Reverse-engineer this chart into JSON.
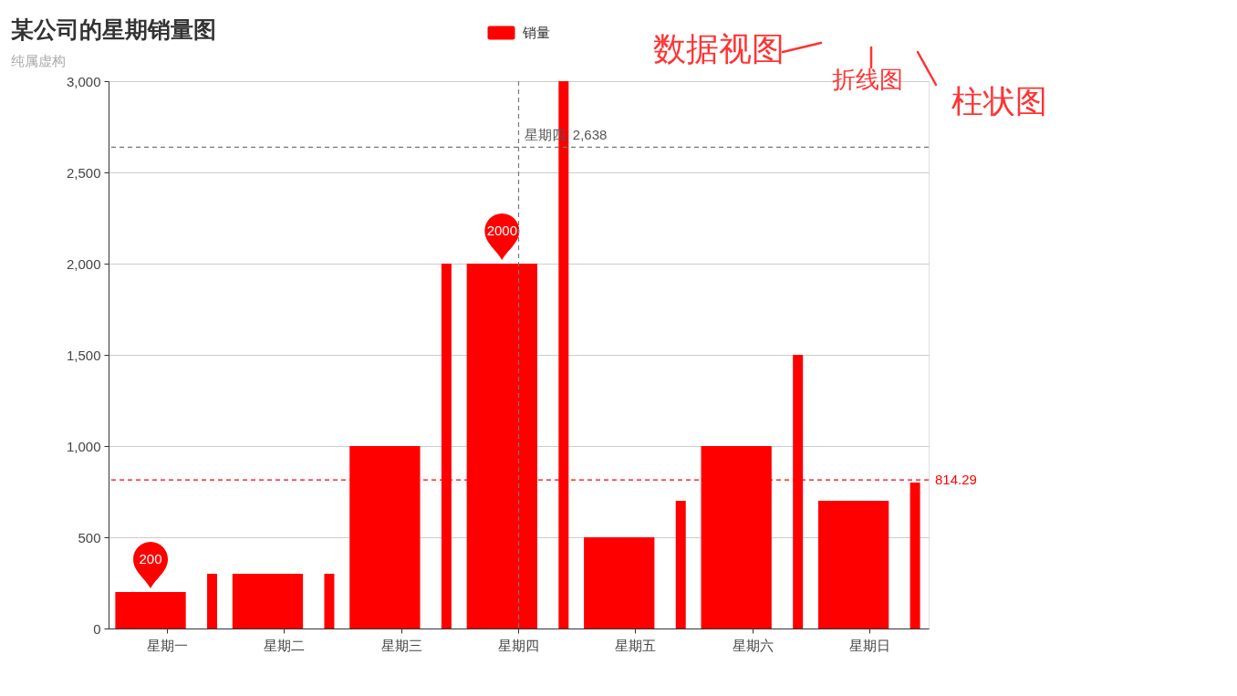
{
  "chart_data": {
    "type": "bar",
    "title": "某公司的星期销量图",
    "subtitle": "纯属虚构",
    "categories": [
      "星期一",
      "星期二",
      "星期三",
      "星期四",
      "星期五",
      "星期六",
      "星期日"
    ],
    "series": [
      {
        "name": "销量",
        "color": "#ff0000",
        "values": [
          200,
          300,
          1000,
          2000,
          500,
          1000,
          700
        ],
        "value_labels": [
          "200",
          null,
          null,
          "2000",
          null,
          null,
          null
        ]
      },
      {
        "color": "#ff0000",
        "values": [
          300,
          300,
          2000,
          3000,
          700,
          1500,
          800
        ]
      }
    ],
    "ylim": [
      0,
      3000
    ],
    "yticks": [
      0,
      500,
      {
        "value": 1000,
        "label": "1,000"
      },
      {
        "value": 1500,
        "label": "1,500"
      },
      {
        "value": 2000,
        "label": "2,000"
      },
      {
        "value": 2500,
        "label": "2,500"
      },
      {
        "value": 3000,
        "label": "3,000"
      }
    ],
    "grid": "y",
    "legend": "top",
    "ref_lines": [
      {
        "axis": "y",
        "value": 814.29,
        "label": "814.29",
        "color": "#ff0000",
        "line_style": "dashed"
      },
      {
        "axis": "x",
        "value": "星期四",
        "color": "#777777",
        "line_style": "dashed"
      },
      {
        "axis": "y",
        "value": 2638,
        "color": "#777777",
        "line_style": "dashed"
      }
    ],
    "annotations": [
      {
        "text": "星期四, 2,638",
        "x": "星期四",
        "y": 2638
      },
      "数据视图",
      "折线图",
      "柱状图"
    ]
  }
}
